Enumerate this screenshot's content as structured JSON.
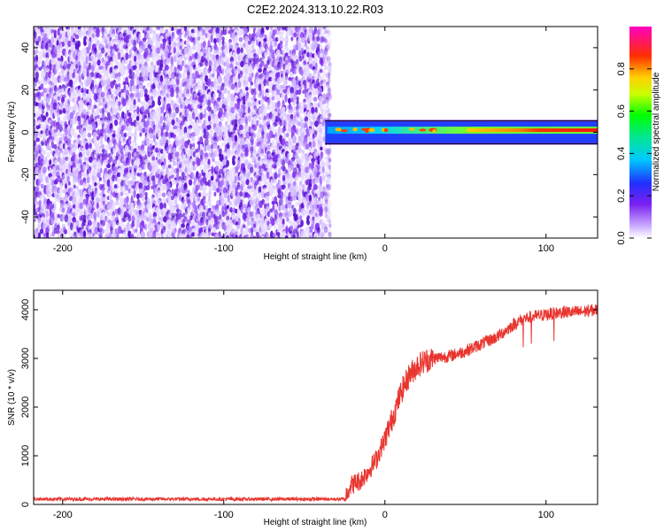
{
  "figure": {
    "title": "C2E2.2024.313.10.22.R03"
  },
  "colors": {
    "snr_line": "#e8352f",
    "frame": "#000000",
    "background": "#ffffff"
  },
  "chart_data": [
    {
      "type": "heatmap",
      "title": "",
      "xlabel": "Height of straight line (km)",
      "ylabel": "Frequency (Hz)",
      "xlim": [
        -218,
        132
      ],
      "ylim": [
        -50,
        50
      ],
      "x_ticks": [
        -200,
        -100,
        0,
        100
      ],
      "y_ticks": [
        -40,
        -20,
        0,
        20,
        40
      ],
      "grid": false,
      "colormap": "rainbow (violet low to magenta high)",
      "colorbar": {
        "label": "Normalized spectral amplitude",
        "range": [
          0,
          1
        ],
        "ticks": [
          0.0,
          0.2,
          0.4,
          0.6,
          0.8
        ]
      },
      "regions": [
        {
          "x_range": [
            -218,
            -37
          ],
          "frequency_range": [
            -50,
            50
          ],
          "description_amplitude": [
            0.05,
            0.25
          ]
        },
        {
          "x_range": [
            -37,
            132
          ],
          "frequency_range": [
            -5,
            5
          ],
          "peak_frequency": 1,
          "peak_amplitude_start": 0.35,
          "peak_amplitude_end": 0.98
        }
      ]
    },
    {
      "type": "line",
      "title": "",
      "xlabel": "Height of straight line (km)",
      "ylabel": "SNR (10 * v/v)",
      "xlim": [
        -218,
        132
      ],
      "ylim": [
        0,
        4400
      ],
      "x_ticks": [
        -200,
        -100,
        0,
        100
      ],
      "y_ticks": [
        0,
        1000,
        2000,
        3000,
        4000
      ],
      "grid": false,
      "series": [
        {
          "x": [
            -218,
            -200,
            -150,
            -100,
            -50,
            -25,
            -22,
            -15,
            -10,
            -5,
            0,
            5,
            10,
            15,
            20,
            25,
            30,
            40,
            50,
            60,
            70,
            80,
            85,
            90,
            100,
            110,
            120,
            132
          ],
          "y": [
            110,
            110,
            110,
            110,
            110,
            110,
            380,
            500,
            700,
            950,
            1350,
            1800,
            2300,
            2650,
            2850,
            2950,
            3000,
            3050,
            3150,
            3300,
            3450,
            3700,
            3800,
            3850,
            3900,
            3950,
            3950,
            4000
          ]
        }
      ]
    }
  ]
}
